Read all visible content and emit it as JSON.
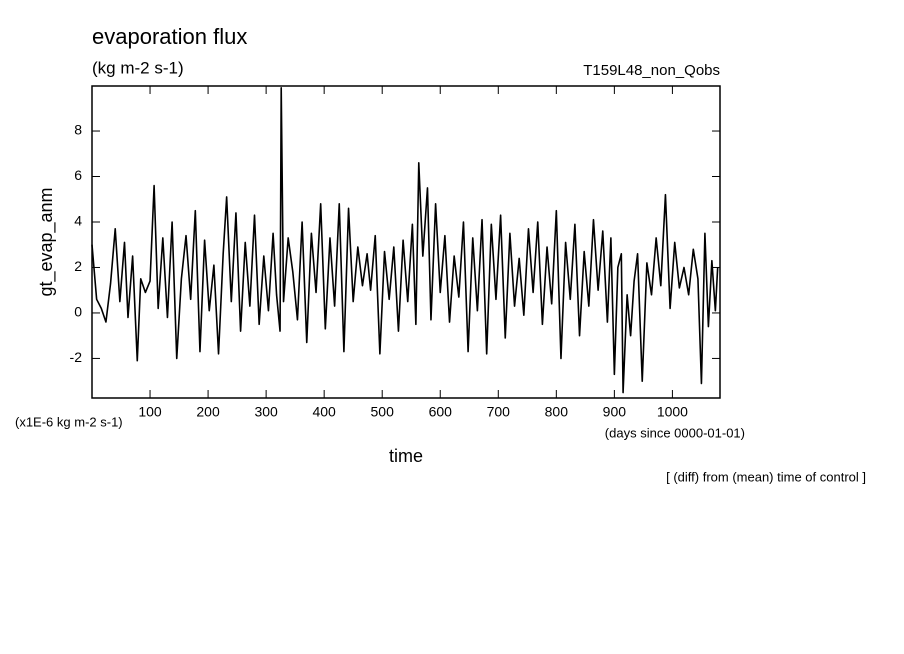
{
  "chart_data": {
    "type": "line",
    "title": "evaporation flux",
    "subtitle": "(kg m-2 s-1)",
    "run_label": "T159L48_non_Qobs",
    "y_label": "gt_evap_anm",
    "y_unit": "(x1E-6 kg m-2 s-1)",
    "x_label": "time",
    "x_unit": "(days since 0000-01-01)",
    "annotation": "[ (diff) from (mean) time of control ]",
    "xlim": [
      0,
      1082
    ],
    "ylim": [
      -3.74,
      9.98
    ],
    "xticks": [
      100,
      200,
      300,
      400,
      500,
      600,
      700,
      800,
      900,
      1000
    ],
    "yticks": [
      -2,
      0,
      2,
      4,
      6,
      8
    ],
    "color": "#000000",
    "x": [
      0,
      8,
      16,
      24,
      32,
      40,
      48,
      56,
      62,
      70,
      78,
      84,
      92,
      100,
      107,
      114,
      122,
      130,
      138,
      146,
      154,
      162,
      170,
      178,
      186,
      194,
      202,
      210,
      218,
      226,
      232,
      240,
      248,
      256,
      264,
      272,
      280,
      288,
      296,
      304,
      312,
      318,
      324,
      326,
      330,
      338,
      346,
      354,
      362,
      370,
      378,
      386,
      394,
      402,
      410,
      418,
      426,
      434,
      442,
      450,
      458,
      466,
      474,
      480,
      488,
      496,
      504,
      512,
      520,
      528,
      536,
      544,
      552,
      558,
      563,
      570,
      578,
      584,
      592,
      600,
      608,
      616,
      624,
      632,
      640,
      648,
      656,
      664,
      672,
      680,
      688,
      696,
      704,
      712,
      720,
      728,
      736,
      744,
      752,
      760,
      768,
      776,
      784,
      792,
      800,
      808,
      816,
      824,
      832,
      840,
      848,
      856,
      864,
      872,
      880,
      888,
      894,
      900,
      906,
      912,
      915,
      922,
      928,
      934,
      940,
      948,
      956,
      964,
      972,
      980,
      988,
      996,
      1004,
      1012,
      1020,
      1028,
      1036,
      1044,
      1050,
      1056,
      1062,
      1068,
      1074,
      1078
    ],
    "values": [
      3.0,
      0.6,
      0.2,
      -0.4,
      1.3,
      3.7,
      0.5,
      3.1,
      -0.2,
      2.5,
      -2.1,
      1.5,
      0.9,
      1.4,
      5.6,
      0.2,
      3.3,
      -0.2,
      4.0,
      -2.0,
      1.5,
      3.4,
      0.6,
      4.5,
      -1.7,
      3.2,
      0.1,
      2.1,
      -1.8,
      2.6,
      5.1,
      0.5,
      4.4,
      -0.8,
      3.1,
      0.3,
      4.3,
      -0.5,
      2.5,
      0.1,
      3.5,
      0.8,
      -0.8,
      9.9,
      0.5,
      3.3,
      1.8,
      -0.3,
      4.0,
      -1.3,
      3.5,
      0.9,
      4.8,
      -0.7,
      3.3,
      0.3,
      4.8,
      -1.7,
      4.6,
      0.5,
      2.9,
      1.2,
      2.6,
      1.0,
      3.4,
      -1.8,
      2.7,
      0.6,
      2.9,
      -0.8,
      3.2,
      0.5,
      3.9,
      -0.5,
      6.6,
      2.5,
      5.5,
      -0.3,
      4.8,
      0.9,
      3.4,
      -0.4,
      2.5,
      0.7,
      4.0,
      -1.7,
      3.3,
      0.1,
      4.1,
      -1.8,
      3.9,
      0.6,
      4.3,
      -1.1,
      3.5,
      0.3,
      2.4,
      -0.1,
      3.7,
      0.9,
      4.0,
      -0.5,
      2.9,
      0.4,
      4.5,
      -2.0,
      3.1,
      0.6,
      3.9,
      -1.0,
      2.7,
      0.3,
      4.1,
      1.0,
      3.6,
      -0.4,
      3.3,
      -2.7,
      2.0,
      2.6,
      -3.5,
      0.8,
      -1.0,
      1.4,
      2.6,
      -3.0,
      2.2,
      0.8,
      3.3,
      1.2,
      5.2,
      0.2,
      3.1,
      1.1,
      2.0,
      0.8,
      2.8,
      1.5,
      -3.1,
      3.5,
      -0.6,
      2.3,
      0.1,
      2.0
    ]
  }
}
